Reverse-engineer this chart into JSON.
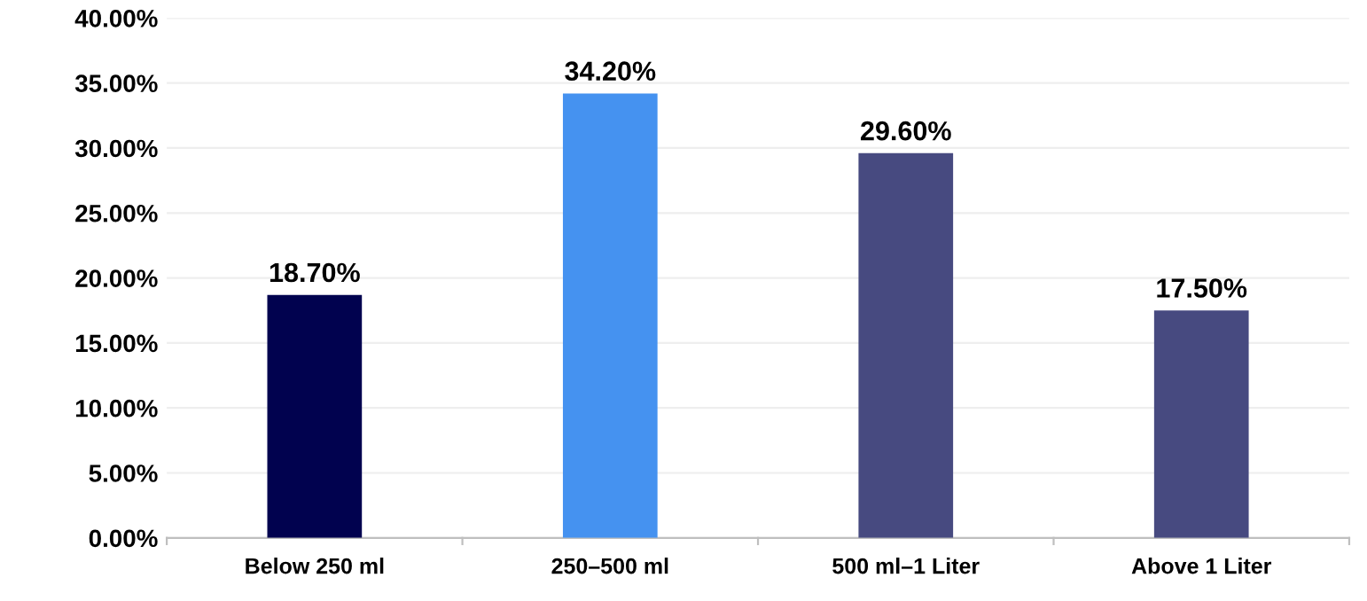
{
  "chart_data": {
    "type": "bar",
    "categories": [
      "Below 250 ml",
      "250–500 ml",
      "500 ml–1 Liter",
      "Above 1 Liter"
    ],
    "values": [
      18.7,
      34.2,
      29.6,
      17.5
    ],
    "colors": [
      "#01024f",
      "#4592f0",
      "#474a80",
      "#474a80"
    ],
    "value_labels": [
      "18.70%",
      "34.20%",
      "29.60%",
      "17.50%"
    ],
    "ylim": [
      0,
      40
    ],
    "yticks": [
      {
        "value": 0,
        "label": "0.00%"
      },
      {
        "value": 5,
        "label": "5.00%"
      },
      {
        "value": 10,
        "label": "10.00%"
      },
      {
        "value": 15,
        "label": "15.00%"
      },
      {
        "value": 20,
        "label": "20.00%"
      },
      {
        "value": 25,
        "label": "25.00%"
      },
      {
        "value": 30,
        "label": "30.00%"
      },
      {
        "value": 35,
        "label": "35.00%"
      },
      {
        "value": 40,
        "label": "40.00%"
      }
    ],
    "grid": "y",
    "legend": false
  }
}
